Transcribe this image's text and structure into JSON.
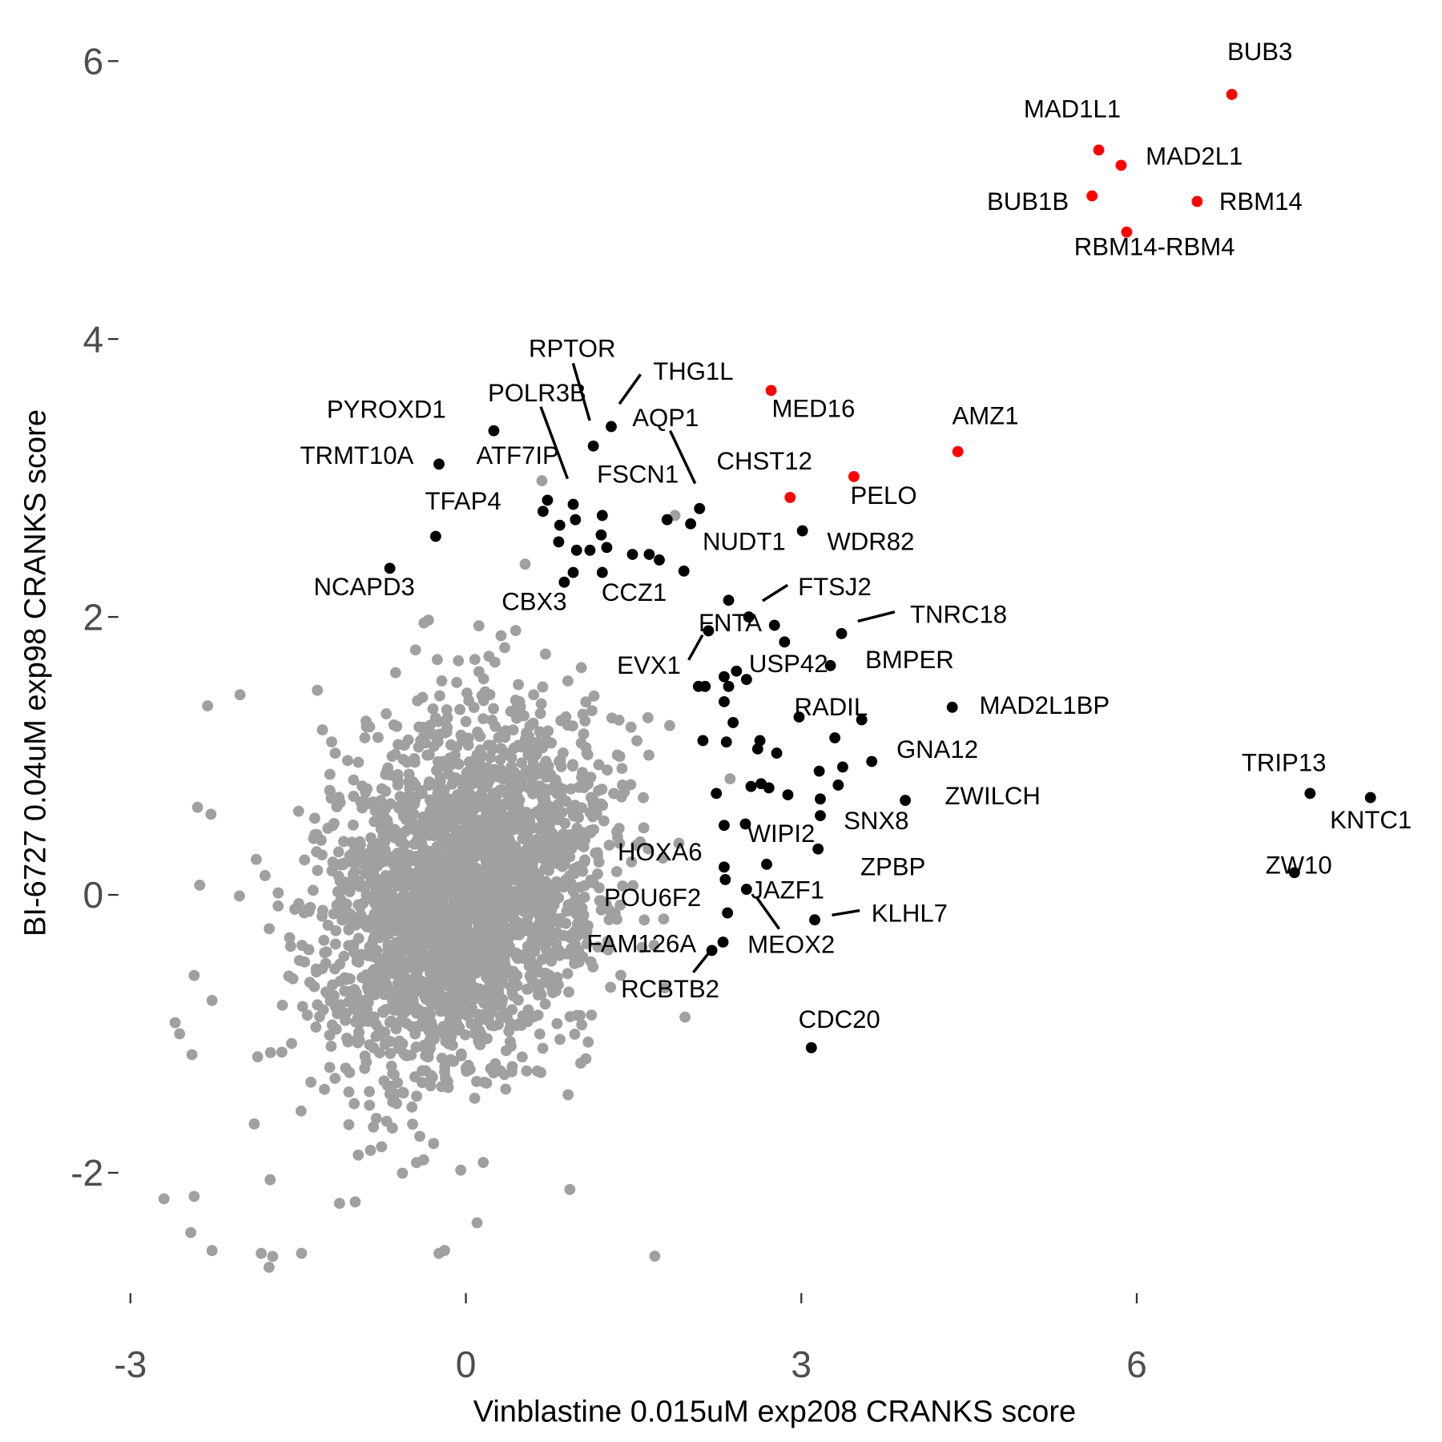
{
  "chart_data": {
    "type": "scatter",
    "title": "",
    "xlabel": "Vinblastine 0.015uM exp208 CRANKS score",
    "ylabel": "BI-6727 0.04uM exp98 CRANKS score",
    "xlim": [
      -3.1,
      8.3
    ],
    "ylim": [
      -2.8,
      6.3
    ],
    "xticks": [
      -3,
      0,
      3,
      6
    ],
    "yticks": [
      -2,
      0,
      2,
      4,
      6
    ],
    "grid": false,
    "legend": "none",
    "colors": {
      "highlight": "#FF0000",
      "hit": "#000000",
      "background": "#A0A0A0"
    },
    "highlighted_points": [
      {
        "label": "BUB3",
        "x": 6.85,
        "y": 5.76
      },
      {
        "label": "MAD1L1",
        "x": 5.66,
        "y": 5.36
      },
      {
        "label": "MAD2L1",
        "x": 5.86,
        "y": 5.25
      },
      {
        "label": "BUB1B",
        "x": 5.6,
        "y": 5.03
      },
      {
        "label": "RBM14",
        "x": 6.54,
        "y": 4.99
      },
      {
        "label": "RBM14-RBM4",
        "x": 5.91,
        "y": 4.77
      },
      {
        "label": "MED16",
        "x": 2.73,
        "y": 3.63
      },
      {
        "label": "AMZ1",
        "x": 4.4,
        "y": 3.19
      },
      {
        "label": "PELO",
        "x": 3.47,
        "y": 3.01
      },
      {
        "label": "CHST12",
        "x": 2.9,
        "y": 2.86
      }
    ],
    "labeled_points": [
      {
        "label": "PYROXD1",
        "x": 0.25,
        "y": 3.34
      },
      {
        "label": "TRMT10A",
        "x": -0.24,
        "y": 3.1
      },
      {
        "label": "RPTOR",
        "x": 1.14,
        "y": 3.23
      },
      {
        "label": "THG1L",
        "x": 1.3,
        "y": 3.37
      },
      {
        "label": "POLR3B",
        "x": 0.96,
        "y": 2.81
      },
      {
        "label": "ATF7IP",
        "x": 0.73,
        "y": 2.84
      },
      {
        "label": "AQP1",
        "x": 2.09,
        "y": 2.78
      },
      {
        "label": "FSCN1",
        "x": 1.8,
        "y": 2.7
      },
      {
        "label": "TFAP4",
        "x": -0.27,
        "y": 2.58
      },
      {
        "label": "WDR82",
        "x": 3.01,
        "y": 2.62
      },
      {
        "label": "NUDT1",
        "x": 1.95,
        "y": 2.33
      },
      {
        "label": "NCAPD3",
        "x": -0.68,
        "y": 2.35
      },
      {
        "label": "CBX3",
        "x": 0.88,
        "y": 2.25
      },
      {
        "label": "CCZ1",
        "x": 1.22,
        "y": 2.32
      },
      {
        "label": "FTSJ2",
        "x": 2.53,
        "y": 2.0
      },
      {
        "label": "TNRC18",
        "x": 3.36,
        "y": 1.88
      },
      {
        "label": "FNTA",
        "x": 2.17,
        "y": 1.9
      },
      {
        "label": "EVX1",
        "x": 2.14,
        "y": 1.5
      },
      {
        "label": "USP42",
        "x": 2.42,
        "y": 1.61
      },
      {
        "label": "BMPER",
        "x": 3.26,
        "y": 1.65
      },
      {
        "label": "RADIL",
        "x": 2.98,
        "y": 1.28
      },
      {
        "label": "MAD2L1BP",
        "x": 4.35,
        "y": 1.35
      },
      {
        "label": "GNA12",
        "x": 3.63,
        "y": 0.96
      },
      {
        "label": "ZWILCH",
        "x": 3.93,
        "y": 0.68
      },
      {
        "label": "SNX8",
        "x": 3.17,
        "y": 0.57
      },
      {
        "label": "WIPI2",
        "x": 2.5,
        "y": 0.51
      },
      {
        "label": "ZPBP",
        "x": 3.15,
        "y": 0.33
      },
      {
        "label": "HOXA6",
        "x": 2.31,
        "y": 0.2
      },
      {
        "label": "JAZF1",
        "x": 2.69,
        "y": 0.22
      },
      {
        "label": "POU6F2",
        "x": 2.34,
        "y": -0.13
      },
      {
        "label": "MEOX2",
        "x": 2.51,
        "y": 0.04
      },
      {
        "label": "KLHL7",
        "x": 3.12,
        "y": -0.18
      },
      {
        "label": "FAM126A",
        "x": 2.3,
        "y": -0.34
      },
      {
        "label": "RCBTB2",
        "x": 2.2,
        "y": -0.4
      },
      {
        "label": "CDC20",
        "x": 3.09,
        "y": -1.1
      },
      {
        "label": "TRIP13",
        "x": 7.55,
        "y": 0.73
      },
      {
        "label": "KNTC1",
        "x": 8.09,
        "y": 0.7
      },
      {
        "label": "ZW10",
        "x": 7.41,
        "y": 0.16
      }
    ],
    "unlabeled_hits": [
      [
        0.69,
        2.76
      ],
      [
        0.83,
        2.54
      ],
      [
        0.84,
        2.66
      ],
      [
        0.98,
        2.7
      ],
      [
        0.99,
        2.48
      ],
      [
        1.22,
        2.73
      ],
      [
        1.21,
        2.59
      ],
      [
        1.11,
        2.48
      ],
      [
        1.26,
        2.5
      ],
      [
        0.96,
        2.32
      ],
      [
        1.49,
        2.45
      ],
      [
        1.64,
        2.45
      ],
      [
        1.73,
        2.41
      ],
      [
        2.01,
        2.67
      ],
      [
        2.35,
        2.12
      ],
      [
        2.76,
        1.94
      ],
      [
        2.85,
        1.82
      ],
      [
        2.31,
        1.57
      ],
      [
        2.35,
        1.5
      ],
      [
        2.31,
        1.39
      ],
      [
        2.51,
        1.55
      ],
      [
        2.39,
        1.24
      ],
      [
        2.12,
        1.11
      ],
      [
        2.33,
        1.1
      ],
      [
        2.63,
        1.11
      ],
      [
        2.78,
        1.02
      ],
      [
        2.61,
        1.05
      ],
      [
        2.64,
        0.8
      ],
      [
        2.55,
        0.78
      ],
      [
        2.71,
        0.77
      ],
      [
        2.88,
        0.72
      ],
      [
        2.24,
        0.73
      ],
      [
        2.31,
        0.5
      ],
      [
        3.16,
        0.89
      ],
      [
        3.3,
        1.13
      ],
      [
        3.37,
        0.92
      ],
      [
        3.33,
        0.79
      ],
      [
        3.17,
        0.69
      ],
      [
        3.54,
        1.26
      ],
      [
        2.32,
        0.11
      ],
      [
        2.08,
        1.5
      ]
    ],
    "background_outliers": [
      [
        -2.31,
        1.36
      ],
      [
        -2.02,
        1.44
      ],
      [
        -2.6,
        -0.92
      ],
      [
        -2.56,
        -1.0
      ],
      [
        -2.45,
        -1.15
      ],
      [
        -2.43,
        -2.17
      ],
      [
        -2.46,
        -2.43
      ],
      [
        -2.27,
        -2.56
      ],
      [
        -1.83,
        -2.58
      ],
      [
        -1.76,
        -2.68
      ],
      [
        -1.47,
        -2.58
      ],
      [
        -0.24,
        -2.58
      ],
      [
        1.69,
        -2.6
      ],
      [
        0.1,
        -2.36
      ],
      [
        0.93,
        -2.12
      ],
      [
        1.96,
        -0.88
      ],
      [
        1.78,
        -0.67
      ],
      [
        0.68,
        2.98
      ],
      [
        0.53,
        2.38
      ],
      [
        1.87,
        2.73
      ],
      [
        -2.4,
        0.63
      ],
      [
        -2.28,
        0.58
      ],
      [
        -2.38,
        0.07
      ],
      [
        -2.43,
        -0.58
      ],
      [
        -2.27,
        -0.76
      ],
      [
        -1.75,
        -2.05
      ],
      [
        -1.13,
        -2.22
      ],
      [
        -0.99,
        -2.21
      ]
    ]
  }
}
